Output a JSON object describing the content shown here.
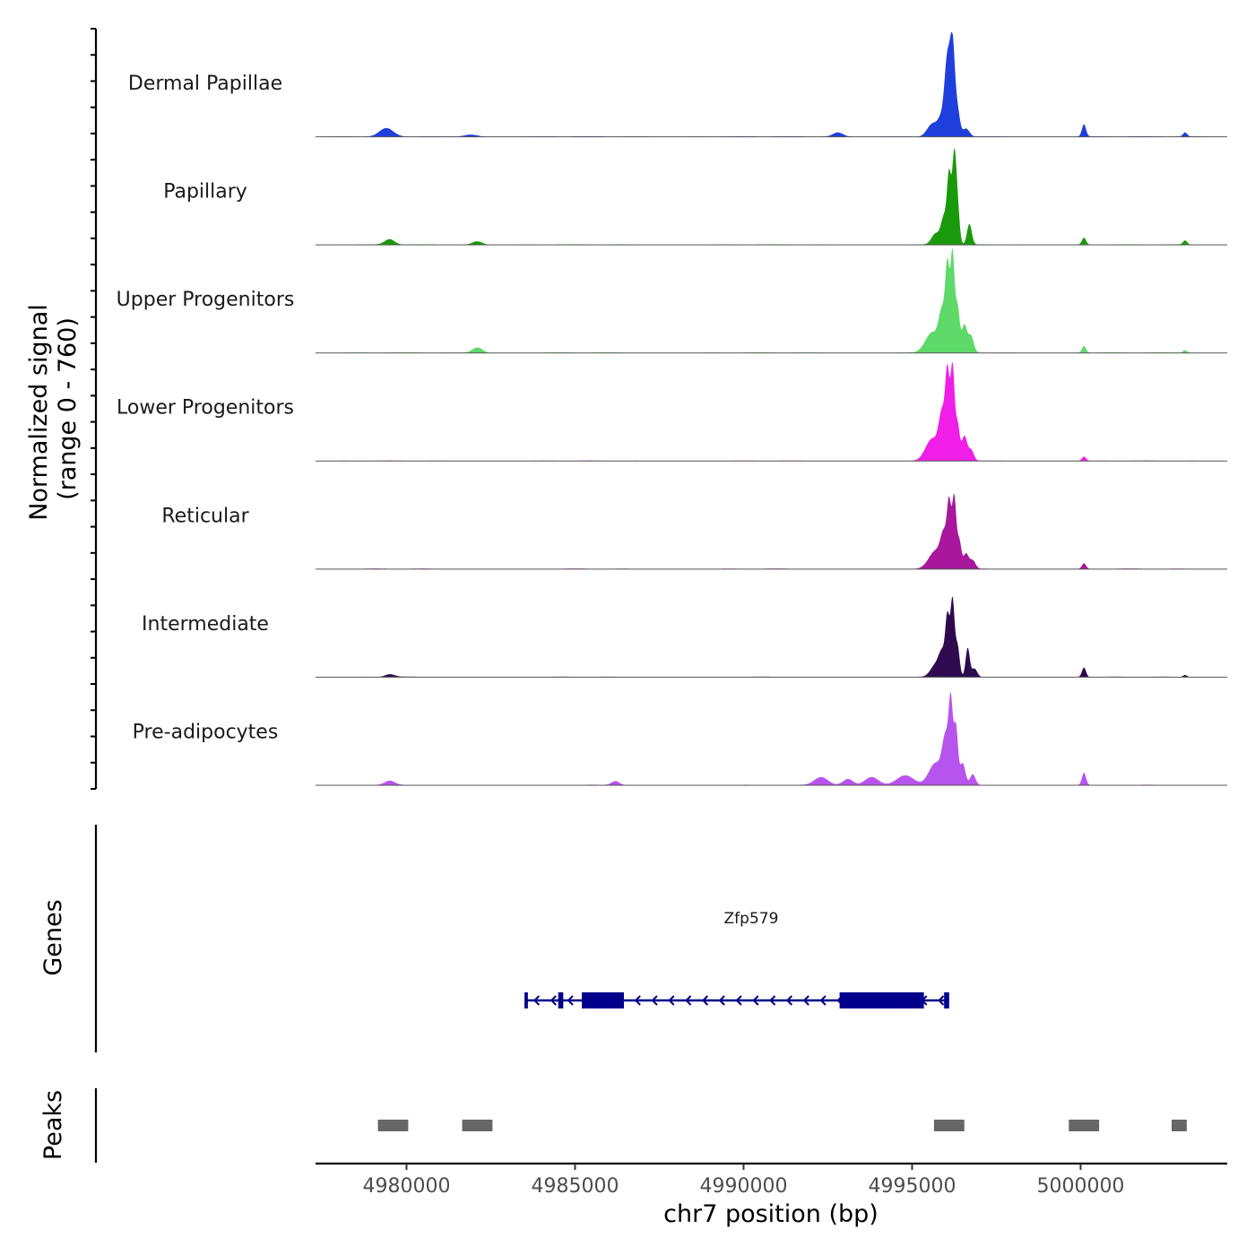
{
  "chart_data": {
    "type": "area",
    "title": "",
    "y_axis_title_line1": "Normalized signal",
    "y_axis_title_line2": "(range 0 - 760)",
    "ylim": [
      0,
      760
    ],
    "xlabel": "chr7 position (bp)",
    "xlim": [
      4977300,
      5004350
    ],
    "x_ticks": [
      4980000,
      4985000,
      4990000,
      4995000,
      5000000
    ],
    "x_tick_labels": [
      "4980000",
      "4985000",
      "4990000",
      "4995000",
      "5000000"
    ],
    "tracks": [
      {
        "name": "Dermal Papillae",
        "color": "#1f3fdc",
        "peaks": [
          [
            4979400,
            60,
            200
          ],
          [
            4981900,
            15,
            200
          ],
          [
            4992800,
            30,
            150
          ],
          [
            4995600,
            90,
            150
          ],
          [
            4995900,
            140,
            120
          ],
          [
            4996050,
            500,
            80
          ],
          [
            4996200,
            650,
            70
          ],
          [
            4996350,
            180,
            70
          ],
          [
            4996600,
            60,
            100
          ],
          [
            5000100,
            90,
            60
          ],
          [
            5003100,
            30,
            60
          ]
        ]
      },
      {
        "name": "Papillary",
        "color": "#1a9a0a",
        "peaks": [
          [
            4979500,
            40,
            150
          ],
          [
            4982100,
            25,
            150
          ],
          [
            4995700,
            80,
            120
          ],
          [
            4995950,
            200,
            90
          ],
          [
            4996100,
            480,
            60
          ],
          [
            4996250,
            620,
            60
          ],
          [
            4996350,
            250,
            60
          ],
          [
            4996700,
            150,
            70
          ],
          [
            5000100,
            50,
            60
          ],
          [
            5003100,
            30,
            60
          ]
        ]
      },
      {
        "name": "Upper Progenitors",
        "color": "#5fd96a",
        "peaks": [
          [
            4982100,
            40,
            150
          ],
          [
            4995600,
            150,
            200
          ],
          [
            4995900,
            280,
            100
          ],
          [
            4996050,
            560,
            60
          ],
          [
            4996200,
            720,
            60
          ],
          [
            4996350,
            320,
            60
          ],
          [
            4996550,
            200,
            80
          ],
          [
            4996750,
            120,
            80
          ],
          [
            5000100,
            50,
            60
          ],
          [
            5003100,
            20,
            60
          ]
        ]
      },
      {
        "name": "Lower Progenitors",
        "color": "#f01ee6",
        "peaks": [
          [
            4995600,
            160,
            200
          ],
          [
            4995900,
            320,
            100
          ],
          [
            4996050,
            560,
            60
          ],
          [
            4996200,
            680,
            60
          ],
          [
            4996350,
            260,
            60
          ],
          [
            4996550,
            180,
            80
          ],
          [
            4996750,
            80,
            80
          ],
          [
            5000100,
            30,
            60
          ]
        ]
      },
      {
        "name": "Reticular",
        "color": "#a8179c",
        "peaks": [
          [
            4995700,
            130,
            200
          ],
          [
            4995950,
            220,
            100
          ],
          [
            4996100,
            420,
            60
          ],
          [
            4996250,
            520,
            60
          ],
          [
            4996400,
            200,
            60
          ],
          [
            4996600,
            110,
            80
          ],
          [
            4996800,
            60,
            80
          ],
          [
            5000100,
            40,
            60
          ]
        ]
      },
      {
        "name": "Intermediate",
        "color": "#2e0b4e",
        "peaks": [
          [
            4979500,
            20,
            150
          ],
          [
            4995700,
            90,
            150
          ],
          [
            4995900,
            160,
            100
          ],
          [
            4996050,
            400,
            60
          ],
          [
            4996200,
            560,
            60
          ],
          [
            4996350,
            220,
            60
          ],
          [
            4996650,
            210,
            60
          ],
          [
            4996850,
            60,
            80
          ],
          [
            5000100,
            70,
            60
          ],
          [
            5003100,
            15,
            60
          ]
        ]
      },
      {
        "name": "Pre-adipocytes",
        "color": "#b854ee",
        "peaks": [
          [
            4979500,
            30,
            150
          ],
          [
            4986200,
            30,
            120
          ],
          [
            4992300,
            60,
            200
          ],
          [
            4993100,
            45,
            150
          ],
          [
            4993800,
            60,
            200
          ],
          [
            4994800,
            70,
            250
          ],
          [
            4995700,
            160,
            200
          ],
          [
            4996000,
            320,
            100
          ],
          [
            4996150,
            540,
            60
          ],
          [
            4996300,
            420,
            60
          ],
          [
            4996500,
            160,
            80
          ],
          [
            4996800,
            80,
            80
          ],
          [
            5000100,
            90,
            60
          ]
        ]
      }
    ],
    "genes": {
      "title": "Genes",
      "gene_name": "Zfp579",
      "strand": "-",
      "start": 4983500,
      "end": 4996100,
      "color": "#00008b",
      "thick_blocks": [
        [
          4983500,
          4983600
        ],
        [
          4984500,
          4984650
        ],
        [
          4985200,
          4986450
        ],
        [
          4992850,
          4995350
        ],
        [
          4995950,
          4996100
        ]
      ]
    },
    "peaks": {
      "title": "Peaks",
      "color": "#666666",
      "regions": [
        [
          4979150,
          4980050
        ],
        [
          4981650,
          4982550
        ],
        [
          4995650,
          4996550
        ],
        [
          4999650,
          5000550
        ],
        [
          5002700,
          5003150
        ]
      ]
    }
  }
}
